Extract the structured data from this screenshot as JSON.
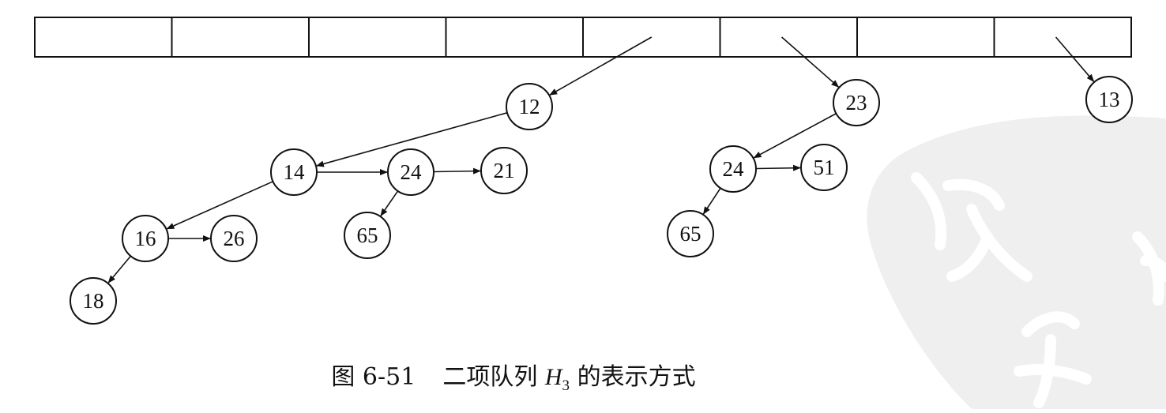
{
  "figure": {
    "number": "图 6-51",
    "title_prefix": "二项队列",
    "var_name": "H",
    "var_subscript": "3",
    "title_suffix": "的表示方式"
  },
  "array": {
    "cell_count": 8
  },
  "trees": [
    {
      "slot": 4,
      "root": "12"
    },
    {
      "slot": 5,
      "root": "23"
    },
    {
      "slot": 7,
      "root": "13"
    }
  ],
  "nodes": [
    {
      "id": "n12",
      "label": "12"
    },
    {
      "id": "n14",
      "label": "14"
    },
    {
      "id": "n24a",
      "label": "24"
    },
    {
      "id": "n21",
      "label": "21"
    },
    {
      "id": "n16",
      "label": "16"
    },
    {
      "id": "n26",
      "label": "26"
    },
    {
      "id": "n65a",
      "label": "65"
    },
    {
      "id": "n18",
      "label": "18"
    },
    {
      "id": "n23",
      "label": "23"
    },
    {
      "id": "n24b",
      "label": "24"
    },
    {
      "id": "n51",
      "label": "51"
    },
    {
      "id": "n65b",
      "label": "65"
    },
    {
      "id": "n13",
      "label": "13"
    }
  ],
  "edges": [
    {
      "from": "n12",
      "to": "n14",
      "kind": "child"
    },
    {
      "from": "n14",
      "to": "n24a",
      "kind": "sibling"
    },
    {
      "from": "n24a",
      "to": "n21",
      "kind": "sibling"
    },
    {
      "from": "n14",
      "to": "n16",
      "kind": "child"
    },
    {
      "from": "n16",
      "to": "n26",
      "kind": "sibling"
    },
    {
      "from": "n16",
      "to": "n18",
      "kind": "child"
    },
    {
      "from": "n24a",
      "to": "n65a",
      "kind": "child"
    },
    {
      "from": "n23",
      "to": "n24b",
      "kind": "child"
    },
    {
      "from": "n24b",
      "to": "n51",
      "kind": "sibling"
    },
    {
      "from": "n24b",
      "to": "n65b",
      "kind": "child"
    }
  ]
}
